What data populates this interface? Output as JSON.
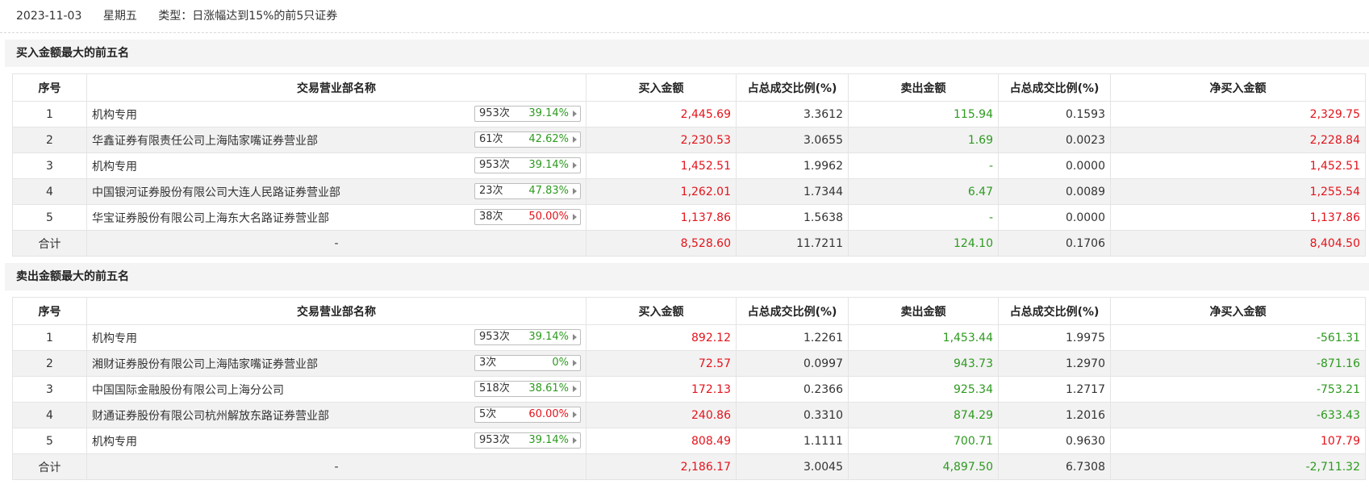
{
  "header": {
    "date": "2023-11-03",
    "weekday": "星期五",
    "type": "类型：日涨幅达到15%的前5只证券"
  },
  "colors": {
    "red": "#e4131b",
    "green": "#2d9a1f"
  },
  "columns": [
    "序号",
    "交易营业部名称",
    "买入金额",
    "占总成交比例(%)",
    "卖出金额",
    "占总成交比例(%)",
    "净买入金额"
  ],
  "buy_section": {
    "title": "买入金额最大的前五名",
    "rows": [
      {
        "idx": "1",
        "name": "机构专用",
        "count": "953次",
        "pct": "39.14%",
        "pct_color": "green",
        "buy": "2,445.69",
        "buy_ratio": "3.3612",
        "sell": "115.94",
        "sell_ratio": "0.1593",
        "net": "2,329.75",
        "net_color": "red"
      },
      {
        "idx": "2",
        "name": "华鑫证券有限责任公司上海陆家嘴证券营业部",
        "count": "61次",
        "pct": "42.62%",
        "pct_color": "green",
        "buy": "2,230.53",
        "buy_ratio": "3.0655",
        "sell": "1.69",
        "sell_ratio": "0.0023",
        "net": "2,228.84",
        "net_color": "red"
      },
      {
        "idx": "3",
        "name": "机构专用",
        "count": "953次",
        "pct": "39.14%",
        "pct_color": "green",
        "buy": "1,452.51",
        "buy_ratio": "1.9962",
        "sell": "-",
        "sell_ratio": "0.0000",
        "net": "1,452.51",
        "net_color": "red"
      },
      {
        "idx": "4",
        "name": "中国银河证券股份有限公司大连人民路证券营业部",
        "count": "23次",
        "pct": "47.83%",
        "pct_color": "green",
        "buy": "1,262.01",
        "buy_ratio": "1.7344",
        "sell": "6.47",
        "sell_ratio": "0.0089",
        "net": "1,255.54",
        "net_color": "red"
      },
      {
        "idx": "5",
        "name": "华宝证券股份有限公司上海东大名路证券营业部",
        "count": "38次",
        "pct": "50.00%",
        "pct_color": "red",
        "buy": "1,137.86",
        "buy_ratio": "1.5638",
        "sell": "-",
        "sell_ratio": "0.0000",
        "net": "1,137.86",
        "net_color": "red"
      }
    ],
    "total": {
      "label": "合计",
      "name": "-",
      "buy": "8,528.60",
      "buy_ratio": "11.7211",
      "sell": "124.10",
      "sell_ratio": "0.1706",
      "net": "8,404.50",
      "net_color": "red"
    }
  },
  "sell_section": {
    "title": "卖出金额最大的前五名",
    "rows": [
      {
        "idx": "1",
        "name": "机构专用",
        "count": "953次",
        "pct": "39.14%",
        "pct_color": "green",
        "buy": "892.12",
        "buy_ratio": "1.2261",
        "sell": "1,453.44",
        "sell_ratio": "1.9975",
        "net": "-561.31",
        "net_color": "green"
      },
      {
        "idx": "2",
        "name": "湘财证券股份有限公司上海陆家嘴证券营业部",
        "count": "3次",
        "pct": "0%",
        "pct_color": "green",
        "buy": "72.57",
        "buy_ratio": "0.0997",
        "sell": "943.73",
        "sell_ratio": "1.2970",
        "net": "-871.16",
        "net_color": "green"
      },
      {
        "idx": "3",
        "name": "中国国际金融股份有限公司上海分公司",
        "count": "518次",
        "pct": "38.61%",
        "pct_color": "green",
        "buy": "172.13",
        "buy_ratio": "0.2366",
        "sell": "925.34",
        "sell_ratio": "1.2717",
        "net": "-753.21",
        "net_color": "green"
      },
      {
        "idx": "4",
        "name": "财通证券股份有限公司杭州解放东路证券营业部",
        "count": "5次",
        "pct": "60.00%",
        "pct_color": "red",
        "buy": "240.86",
        "buy_ratio": "0.3310",
        "sell": "874.29",
        "sell_ratio": "1.2016",
        "net": "-633.43",
        "net_color": "green"
      },
      {
        "idx": "5",
        "name": "机构专用",
        "count": "953次",
        "pct": "39.14%",
        "pct_color": "green",
        "buy": "808.49",
        "buy_ratio": "1.1111",
        "sell": "700.71",
        "sell_ratio": "0.9630",
        "net": "107.79",
        "net_color": "red"
      }
    ],
    "total": {
      "label": "合计",
      "name": "-",
      "buy": "2,186.17",
      "buy_ratio": "3.0045",
      "sell": "4,897.50",
      "sell_ratio": "6.7308",
      "net": "-2,711.32",
      "net_color": "green"
    }
  }
}
